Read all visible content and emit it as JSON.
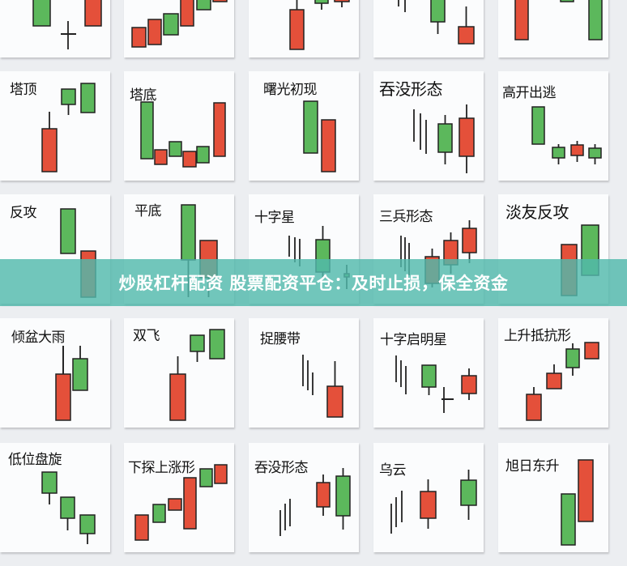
{
  "colors": {
    "bullish_red": "#e4503a",
    "bearish_green": "#5cb85c",
    "outline": "#222222",
    "banner": "#52baac"
  },
  "patterns": {
    "row1": [
      "塔顶",
      "塔底",
      "曙光初现",
      "吞没形态",
      "高开出逃"
    ],
    "row2": [
      "反攻",
      "平底",
      "十字星",
      "三兵形态",
      "淡友反攻"
    ],
    "row3": [
      "倾盆大雨",
      "双飞",
      "捉腰带",
      "十字启明星",
      "上升抵抗形"
    ],
    "row4": [
      "低位盘旋",
      "下探上涨形",
      "吞没形态",
      "乌云",
      "旭日东升"
    ]
  },
  "banner": {
    "text": "炒股杠杆配资 股票配资平仓：及时止损，保全资金"
  }
}
